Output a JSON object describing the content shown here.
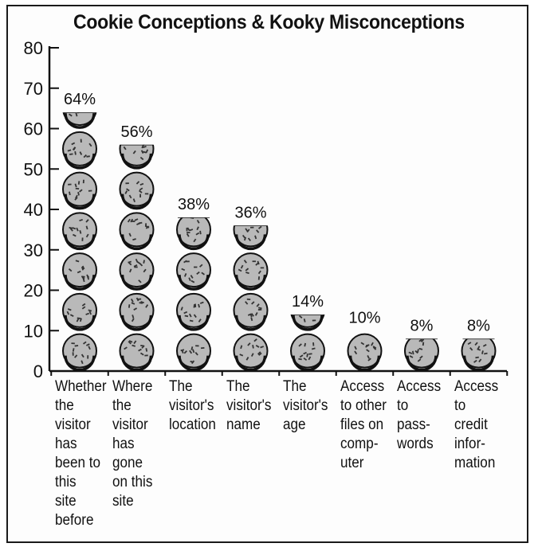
{
  "chart_data": {
    "type": "bar",
    "title": "Cookie Conceptions & Kooky Misconceptions",
    "xlabel": "",
    "ylabel": "",
    "ylim": [
      0,
      80
    ],
    "yticks": [
      0,
      10,
      20,
      30,
      40,
      50,
      60,
      70,
      80
    ],
    "grid": false,
    "categories": [
      "Whether the visitor has been to this site before",
      "Where the visitor has gone on this site",
      "The visitor's location",
      "The visitor's name",
      "The visitor's age",
      "Access to other files on computer",
      "Access to passwords",
      "Access to credit information"
    ],
    "category_lines": [
      "Whether\nthe\nvisitor\nhas\nbeen to\nthis\nsite\nbefore",
      "Where\nthe\nvisitor\nhas\ngone\non this\nsite",
      "The\nvisitor's\nlocation",
      "The\nvisitor's\nname",
      "The\nvisitor's\nage",
      "Access\nto other\nfiles on\ncomp-\nuter",
      "Access\nto\npass-\nwords",
      "Access\nto\ncredit\ninfor-\nmation"
    ],
    "values": [
      64,
      56,
      38,
      36,
      14,
      10,
      8,
      8
    ],
    "data_labels": [
      "64%",
      "56%",
      "38%",
      "36%",
      "14%",
      "10%",
      "8%",
      "8%"
    ],
    "colors": {
      "cookie": "#b9b9b9",
      "chip": "#333333",
      "ink": "#111111"
    }
  }
}
